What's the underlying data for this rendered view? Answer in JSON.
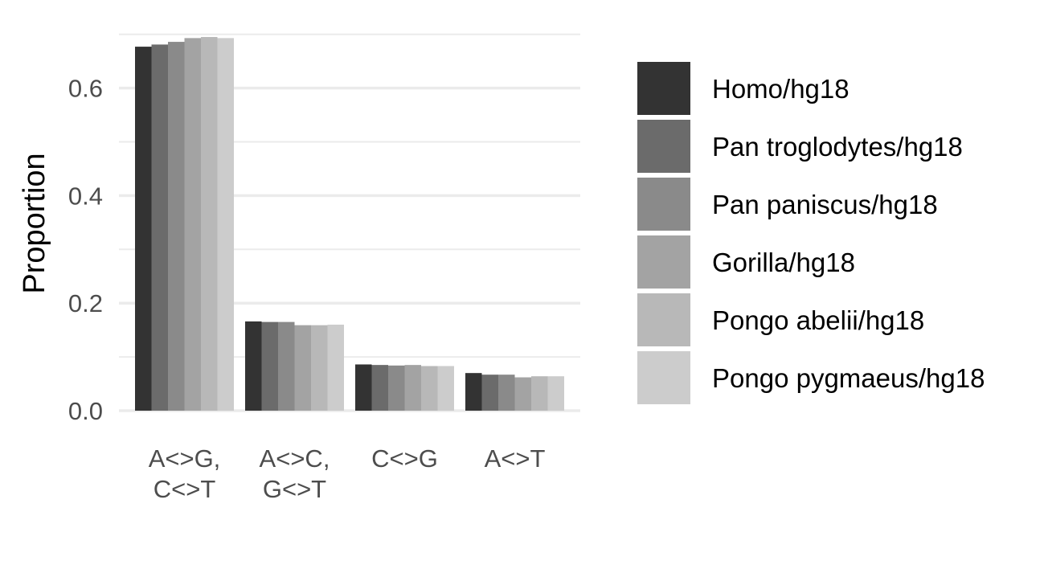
{
  "chart_data": {
    "type": "bar",
    "title": "",
    "xlabel": "",
    "ylabel": "Proportion",
    "ylim": [
      0,
      0.7
    ],
    "yticks": [
      "0.0",
      "0.2",
      "0.4",
      "0.6"
    ],
    "grid": true,
    "legend_position": "right",
    "categories": [
      [
        "A<>G,",
        "C<>T"
      ],
      [
        "A<>C,",
        "G<>T"
      ],
      [
        "C<>G"
      ],
      [
        "A<>T"
      ]
    ],
    "series": [
      {
        "name": "Homo/hg18",
        "color": "#333333",
        "values": [
          0.677,
          0.166,
          0.086,
          0.07
        ]
      },
      {
        "name": "Pan troglodytes/hg18",
        "color": "#6b6b6b",
        "values": [
          0.681,
          0.165,
          0.085,
          0.067
        ]
      },
      {
        "name": "Pan paniscus/hg18",
        "color": "#8a8a8a",
        "values": [
          0.686,
          0.165,
          0.084,
          0.067
        ]
      },
      {
        "name": "Gorilla/hg18",
        "color": "#a3a3a3",
        "values": [
          0.693,
          0.159,
          0.085,
          0.062
        ]
      },
      {
        "name": "Pongo abelii/hg18",
        "color": "#b8b8b8",
        "values": [
          0.695,
          0.159,
          0.083,
          0.064
        ]
      },
      {
        "name": "Pongo pygmaeus/hg18",
        "color": "#cccccc",
        "values": [
          0.693,
          0.16,
          0.083,
          0.064
        ]
      }
    ]
  }
}
